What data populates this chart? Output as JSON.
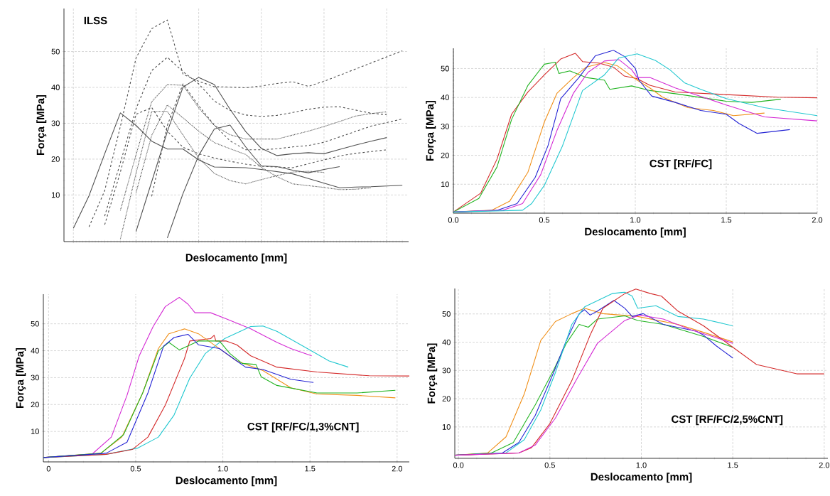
{
  "chart_data": [
    {
      "type": "line",
      "title": "ILSS",
      "xlabel": "Deslocamento [mm]",
      "ylabel": "Força [MPa]",
      "ylim": [
        -3,
        62
      ],
      "grid": true,
      "categories": [
        null,
        null,
        null,
        null,
        null,
        null,
        null,
        null,
        null,
        null,
        null,
        null,
        null,
        null,
        null,
        null,
        null,
        null,
        null,
        null,
        null,
        null
      ],
      "yticks": [
        10,
        20,
        30,
        40,
        50
      ],
      "series": [
        {
          "color": "#505050",
          "line_style": "solid",
          "values": [
            0.7,
            9.8,
            21.5,
            32.9,
            29.4,
            25.0,
            22.8,
            22.8,
            19.8,
            17.8,
            17.7,
            17.6,
            17.1,
            16.5,
            15.9,
            14.6,
            13.3,
            12.0,
            12.2,
            12.3,
            12.5,
            12.7
          ]
        },
        {
          "color": "#505050",
          "line_style": "solid",
          "values": [
            null,
            null,
            null,
            null,
            -0.2,
            13.7,
            27.7,
            40.1,
            42.8,
            40.8,
            33.9,
            27.7,
            23.0,
            21.0,
            21.5,
            21.8,
            21.5,
            22.7,
            23.9,
            25.0,
            26.0,
            null
          ]
        },
        {
          "color": "#505050",
          "line_style": "solid",
          "values": [
            null,
            null,
            null,
            null,
            null,
            null,
            -2.0,
            10.4,
            21.0,
            28.4,
            29.5,
            23.4,
            18.1,
            17.9,
            16.9,
            16.2,
            17.1,
            17.9,
            null,
            null,
            null,
            null
          ]
        },
        {
          "color": "#505050",
          "line_style": "dashed",
          "values": [
            null,
            1.1,
            11.2,
            29.1,
            48.2,
            56.4,
            58.8,
            43.7,
            41.7,
            40.2,
            40.1,
            39.9,
            40.4,
            41.1,
            41.6,
            40.3,
            41.7,
            43.4,
            45.1,
            46.8,
            48.5,
            50.2
          ]
        },
        {
          "color": "#505050",
          "line_style": "dashed",
          "values": [
            null,
            null,
            4.1,
            19.0,
            34.0,
            44.7,
            48.4,
            44.4,
            41.0,
            36.2,
            33.6,
            32.3,
            31.9,
            32.2,
            33.0,
            33.9,
            34.5,
            34.6,
            33.7,
            32.8,
            32.4,
            null
          ]
        },
        {
          "color": "#505050",
          "line_style": "dotted",
          "values": [
            null,
            null,
            null,
            5.7,
            21.2,
            36.0,
            40.8,
            40.6,
            34.3,
            29.4,
            26.8,
            25.6,
            25.6,
            25.6,
            26.7,
            27.8,
            29.1,
            30.5,
            32.0,
            32.7,
            33.2,
            null
          ]
        },
        {
          "color": "#505050",
          "line_style": "dotted",
          "values": [
            null,
            null,
            null,
            -2.3,
            16.0,
            33.3,
            33.3,
            26.7,
            20.3,
            16.0,
            14.0,
            13.1,
            14.3,
            15.4,
            16.4,
            16.6,
            16.3,
            null,
            null,
            null,
            null,
            null
          ]
        },
        {
          "color": "#505050",
          "line_style": "dashed",
          "values": [
            null,
            null,
            1.7,
            16.4,
            32.5,
            34.4,
            27.8,
            23.3,
            21.5,
            20.3,
            19.4,
            18.6,
            18.0,
            17.8,
            17.6,
            18.7,
            19.8,
            20.9,
            21.6,
            22.1,
            22.6,
            null
          ]
        },
        {
          "color": "#505050",
          "line_style": "dashed",
          "values": [
            null,
            null,
            null,
            null,
            null,
            9.6,
            29.4,
            41.0,
            34.9,
            29.5,
            25.1,
            22.6,
            22.6,
            22.9,
            23.4,
            23.8,
            24.7,
            26.2,
            27.7,
            29.2,
            30.2,
            31.2
          ]
        },
        {
          "color": "#505050",
          "line_style": "dotted",
          "values": [
            null,
            null,
            null,
            null,
            10.6,
            26.6,
            35.1,
            31.5,
            27.8,
            24.6,
            22.9,
            21.3,
            17.7,
            15.1,
            13.1,
            12.6,
            12.1,
            11.5,
            11.6,
            12.0,
            null,
            null
          ]
        }
      ]
    },
    {
      "type": "line",
      "title": "CST [RF/FC]",
      "xlabel": "Deslocamento [mm]",
      "ylabel": "Força [MPa]",
      "xlim": [
        0,
        2.0
      ],
      "ylim": [
        0,
        57
      ],
      "grid": true,
      "xticks": [
        {
          "value": 0,
          "label": "0.0"
        },
        0.5,
        {
          "value": 1,
          "label": "1.0"
        },
        1.5,
        {
          "value": 2,
          "label": "2.0"
        }
      ],
      "yticks": [
        10,
        20,
        30,
        40,
        50
      ],
      "series": [
        {
          "color": "#d42a2a",
          "x": [
            0,
            0.15,
            0.24,
            0.32,
            0.41,
            0.5,
            0.59,
            0.67,
            0.71,
            0.8,
            0.88,
            0.94,
            1.01,
            1.08,
            1.22,
            1.5,
            1.78,
            2.0
          ],
          "values": [
            0.4,
            6.9,
            18.7,
            34.2,
            41.9,
            47.8,
            53.3,
            55.3,
            52.4,
            51.9,
            50.5,
            47.4,
            46.5,
            44.2,
            41.9,
            41,
            40.1,
            39.9
          ]
        },
        {
          "color": "#22b422",
          "x": [
            0,
            0.14,
            0.24,
            0.32,
            0.41,
            0.5,
            0.56,
            0.58,
            0.64,
            0.73,
            0.83,
            0.86,
            0.98,
            1.08,
            1.22,
            1.5,
            1.64,
            1.8
          ],
          "values": [
            0.4,
            5.1,
            16,
            32.4,
            44.2,
            51.5,
            52.2,
            48.3,
            49.2,
            46.9,
            46,
            42.8,
            44,
            42.4,
            41.3,
            38.7,
            38.3,
            39.4
          ]
        },
        {
          "color": "#f0901a",
          "x": [
            0,
            0.21,
            0.31,
            0.41,
            0.5,
            0.57,
            0.66,
            0.73,
            0.83,
            0.9,
            1.01,
            1.08,
            1.15,
            1.29,
            1.43,
            1.54,
            1.71
          ],
          "values": [
            0.4,
            1,
            4.2,
            14.2,
            31.5,
            41.5,
            46.9,
            50.5,
            52.1,
            51,
            46,
            43.3,
            40.1,
            36.5,
            35.5,
            33.7,
            34.6
          ]
        },
        {
          "color": "#2424d4",
          "x": [
            0,
            0.24,
            0.35,
            0.45,
            0.52,
            0.59,
            0.69,
            0.78,
            0.88,
            0.94,
            1.0,
            1.02,
            1.09,
            1.22,
            1.36,
            1.5,
            1.57,
            1.67,
            1.85
          ],
          "values": [
            0.4,
            1,
            3.3,
            12.4,
            23.3,
            39.6,
            46.9,
            54.4,
            56.3,
            54.2,
            50.1,
            46,
            40.5,
            38.3,
            35.5,
            34.2,
            31,
            27.6,
            28.9
          ]
        },
        {
          "color": "#d42ad4",
          "x": [
            0,
            0.27,
            0.38,
            0.48,
            0.57,
            0.66,
            0.74,
            0.83,
            0.91,
            0.98,
            1.01,
            1.08,
            1.22,
            1.5,
            1.71,
            2.0
          ],
          "values": [
            0.4,
            1,
            3.3,
            13.3,
            28.7,
            41.5,
            48.7,
            52.6,
            53.1,
            49.6,
            46.9,
            46.9,
            43.3,
            37.4,
            33.3,
            31.9
          ]
        },
        {
          "color": "#22c8d0",
          "x": [
            0,
            0.38,
            0.43,
            0.5,
            0.6,
            0.71,
            0.83,
            0.91,
            1.01,
            1.11,
            1.19,
            1.27,
            1.36,
            1.5,
            1.71,
            2.0
          ],
          "values": [
            0.4,
            1,
            3.3,
            9.6,
            23.3,
            42.4,
            47.8,
            53.7,
            55.1,
            52.8,
            49.6,
            45.1,
            42.8,
            39.6,
            36.5,
            33.7
          ]
        }
      ]
    },
    {
      "type": "line",
      "title": "CST [RF/FC/1,3%CNT]",
      "xlabel": "Deslocamento [mm]",
      "ylabel": "Força [MPa]",
      "xlim": [
        -0.03,
        2.07
      ],
      "ylim": [
        -1.3,
        61
      ],
      "grid": true,
      "xticks": [
        0,
        0.5,
        {
          "value": 1,
          "label": "1.0"
        },
        1.5,
        {
          "value": 2,
          "label": "2.0"
        }
      ],
      "yticks": [
        10,
        20,
        30,
        40,
        50
      ],
      "series": [
        {
          "color": "#d42ad4",
          "x": [
            -0.03,
            0.25,
            0.36,
            0.45,
            0.52,
            0.6,
            0.67,
            0.75,
            0.8,
            0.84,
            0.93,
            1.02,
            1.16,
            1.31,
            1.39,
            1.51
          ],
          "values": [
            0.3,
            1.6,
            7.9,
            23.4,
            38.1,
            49,
            56.4,
            59.8,
            57.3,
            54.1,
            54.1,
            51.8,
            48.1,
            43.1,
            40.8,
            38.1
          ]
        },
        {
          "color": "#22c8d0",
          "x": [
            -0.03,
            0.33,
            0.51,
            0.63,
            0.72,
            0.81,
            0.9,
            1.01,
            1.16,
            1.23,
            1.31,
            1.51,
            1.61,
            1.72
          ],
          "values": [
            0.3,
            1.5,
            3.8,
            7.9,
            16.1,
            29.8,
            39,
            44.5,
            49,
            49.2,
            47.2,
            39.9,
            36.2,
            33.9
          ]
        },
        {
          "color": "#d42a2a",
          "x": [
            -0.03,
            0.33,
            0.48,
            0.57,
            0.67,
            0.78,
            0.81,
            0.93,
            0.95,
            0.96,
            1.02,
            1.08,
            1.16,
            1.31,
            1.54,
            1.84,
            2.07
          ],
          "values": [
            0.3,
            1.5,
            3.3,
            7.9,
            19.8,
            37.1,
            43.6,
            44.5,
            45.7,
            43.6,
            43.6,
            42.2,
            38.1,
            33.9,
            32.1,
            30.7,
            30.6
          ]
        },
        {
          "color": "#f0901a",
          "x": [
            -0.03,
            0.3,
            0.42,
            0.54,
            0.63,
            0.69,
            0.78,
            0.86,
            0.96,
            1.08,
            1.23,
            1.39,
            1.54,
            1.77,
            1.99
          ],
          "values": [
            0.3,
            1.9,
            7.9,
            24.3,
            40.8,
            46.3,
            48.1,
            46.3,
            41.7,
            36.2,
            32.6,
            26.2,
            23.9,
            23.4,
            22.5
          ]
        },
        {
          "color": "#22b422",
          "x": [
            -0.03,
            0.3,
            0.43,
            0.54,
            0.63,
            0.69,
            0.75,
            0.86,
            0.98,
            1.04,
            1.11,
            1.19,
            1.22,
            1.31,
            1.54,
            1.77,
            1.99
          ],
          "values": [
            0.3,
            1.9,
            8.8,
            24.3,
            39.9,
            43.1,
            40.3,
            43.6,
            43.6,
            39,
            35.3,
            34.9,
            30.3,
            27.1,
            24.3,
            24.3,
            25.3
          ]
        },
        {
          "color": "#2424d4",
          "x": [
            -0.03,
            0.33,
            0.45,
            0.57,
            0.66,
            0.72,
            0.8,
            0.86,
            0.98,
            1.08,
            1.13,
            1.23,
            1.39,
            1.52
          ],
          "values": [
            0.3,
            1.9,
            6,
            24.3,
            41.7,
            44.9,
            46.1,
            42.2,
            40.8,
            36.2,
            33.9,
            33,
            29.4,
            28.2
          ]
        }
      ]
    },
    {
      "type": "line",
      "title": "CST [RF/FC/2,5%CNT]",
      "xlabel": "Deslocamento [mm]",
      "ylabel": "Força [MPa]",
      "xlim": [
        -0.02,
        2.02
      ],
      "ylim": [
        -1.1,
        59
      ],
      "grid": true,
      "xticks": [
        {
          "value": 0,
          "label": "0.0"
        },
        0.5,
        {
          "value": 1,
          "label": "1.0"
        },
        1.5,
        {
          "value": 2,
          "label": "2.0"
        }
      ],
      "yticks": [
        10,
        20,
        30,
        40,
        50
      ],
      "series": [
        {
          "color": "#f0901a",
          "x": [
            -0.02,
            0.16,
            0.26,
            0.36,
            0.45,
            0.53,
            0.62,
            0.69,
            0.79,
            0.98,
            1.2,
            1.34,
            1.5
          ],
          "values": [
            0,
            0.8,
            6.5,
            21.7,
            40.6,
            47.3,
            50.1,
            52,
            50.1,
            49.1,
            46.3,
            43.5,
            40.1
          ]
        },
        {
          "color": "#22b422",
          "x": [
            -0.02,
            0.18,
            0.3,
            0.42,
            0.52,
            0.59,
            0.66,
            0.71,
            0.76,
            0.91,
            0.98,
            1.12,
            1.34,
            1.5
          ],
          "values": [
            0,
            0.8,
            4.5,
            17.8,
            30.1,
            39.6,
            46.3,
            45.3,
            48.2,
            49.3,
            47.7,
            46.3,
            42,
            38.2
          ]
        },
        {
          "color": "#2424d4",
          "x": [
            -0.02,
            0.24,
            0.33,
            0.42,
            0.52,
            0.59,
            0.66,
            0.69,
            0.72,
            0.76,
            0.85,
            0.91,
            0.95,
            1.01,
            1.12,
            1.3,
            1.34,
            1.41,
            1.5
          ],
          "values": [
            0,
            0.8,
            4.5,
            14.1,
            29.2,
            40.6,
            50.1,
            51.5,
            49.6,
            51,
            54.8,
            52,
            49.1,
            50.1,
            46.3,
            43.9,
            42.5,
            38.7,
            34.4
          ]
        },
        {
          "color": "#22c8d0",
          "x": [
            -0.02,
            0.26,
            0.36,
            0.45,
            0.53,
            0.62,
            0.69,
            0.84,
            0.91,
            0.95,
            0.98,
            1.08,
            1.2,
            1.34,
            1.5
          ],
          "values": [
            0,
            0.8,
            5.5,
            16,
            29.2,
            46.3,
            52.5,
            57.2,
            57.7,
            56.3,
            52,
            52.9,
            49.1,
            48.2,
            45.8
          ]
        },
        {
          "color": "#d42a2a",
          "x": [
            -0.02,
            0.33,
            0.4,
            0.5,
            0.62,
            0.72,
            0.79,
            0.91,
            0.97,
            1.05,
            1.11,
            1.2,
            1.34,
            1.49,
            1.63,
            1.85,
            2.0
          ],
          "values": [
            0,
            0.8,
            2.7,
            11.2,
            26.4,
            42.5,
            52,
            57.2,
            58.8,
            57.2,
            56.3,
            51,
            45.8,
            38.7,
            32.1,
            28.8,
            28.8
          ]
        },
        {
          "color": "#d42ad4",
          "x": [
            -0.02,
            0.33,
            0.42,
            0.53,
            0.65,
            0.76,
            0.91,
            0.99,
            1.12,
            1.27,
            1.41,
            1.5
          ],
          "values": [
            0,
            0.8,
            3.6,
            13.1,
            27.3,
            39.6,
            47.7,
            49.6,
            48.2,
            44.4,
            41.6,
            39.6
          ]
        }
      ]
    }
  ]
}
